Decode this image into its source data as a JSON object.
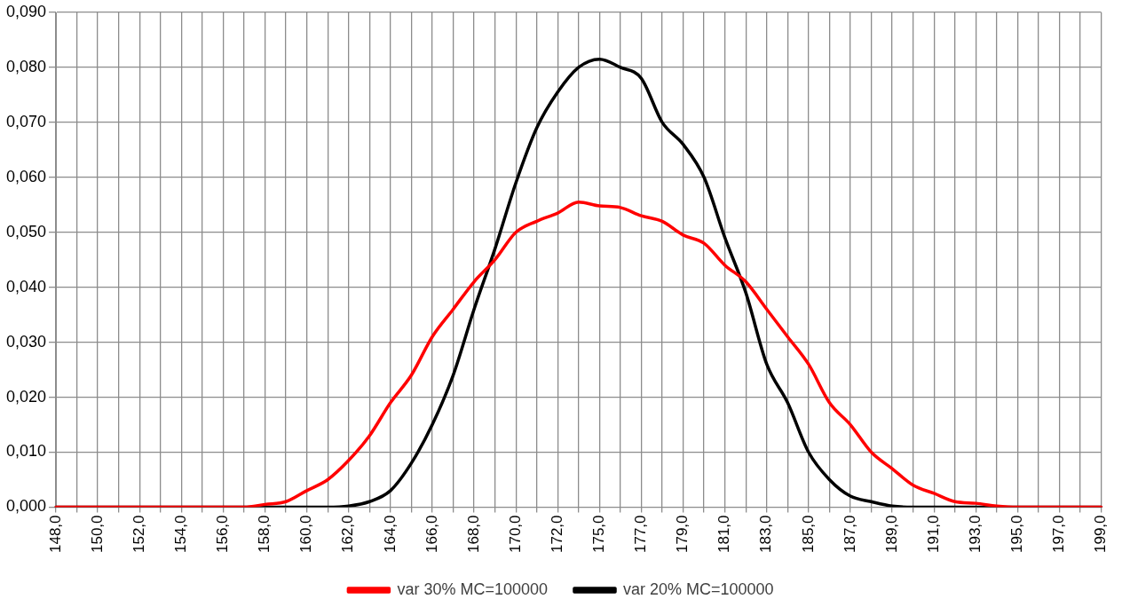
{
  "chart_data": {
    "type": "line",
    "categories": [
      "148,0",
      null,
      "150,0",
      null,
      "152,0",
      null,
      "154,0",
      null,
      "156,0",
      null,
      "158,0",
      null,
      "160,0",
      null,
      "162,0",
      null,
      "164,0",
      null,
      "166,0",
      null,
      "168,0",
      null,
      "170,0",
      null,
      "172,0",
      null,
      "175,0",
      null,
      "177,0",
      null,
      "179,0",
      null,
      "181,0",
      null,
      "183,0",
      null,
      "185,0",
      null,
      "187,0",
      null,
      "189,0",
      null,
      "191,0",
      null,
      "193,0",
      null,
      "195,0",
      null,
      "197,0",
      null,
      "199,0"
    ],
    "series": [
      {
        "name": "var 30% MC=100000",
        "color": "#ff0000",
        "values": [
          0,
          0,
          0,
          0,
          0,
          0,
          0,
          0,
          0,
          0,
          0.0005,
          0.001,
          0.003,
          0.005,
          0.0085,
          0.013,
          0.019,
          0.024,
          0.031,
          0.036,
          0.041,
          0.045,
          0.05,
          0.052,
          0.0535,
          0.0555,
          0.0548,
          0.0545,
          0.053,
          0.052,
          0.0495,
          0.048,
          0.044,
          0.041,
          0.036,
          0.031,
          0.026,
          0.019,
          0.015,
          0.01,
          0.007,
          0.004,
          0.0025,
          0.001,
          0.0007,
          0.0002,
          0,
          0,
          0,
          0,
          0
        ]
      },
      {
        "name": "var 20% MC=100000",
        "color": "#000000",
        "values": [
          0,
          0,
          0,
          0,
          0,
          0,
          0,
          0,
          0,
          0,
          0,
          0,
          0,
          0,
          0.0002,
          0.001,
          0.003,
          0.008,
          0.015,
          0.024,
          0.036,
          0.047,
          0.059,
          0.069,
          0.0755,
          0.08,
          0.0815,
          0.08,
          0.078,
          0.07,
          0.066,
          0.06,
          0.049,
          0.039,
          0.026,
          0.019,
          0.01,
          0.005,
          0.002,
          0.001,
          0.0002,
          0,
          0,
          0,
          0,
          0,
          0,
          0,
          0,
          0,
          0
        ]
      }
    ],
    "ylim": [
      0,
      0.09
    ],
    "yticks": [
      {
        "value": 0,
        "label": "0,000"
      },
      {
        "value": 0.01,
        "label": "0,010"
      },
      {
        "value": 0.02,
        "label": "0,020"
      },
      {
        "value": 0.03,
        "label": "0,030"
      },
      {
        "value": 0.04,
        "label": "0,040"
      },
      {
        "value": 0.05,
        "label": "0,050"
      },
      {
        "value": 0.06,
        "label": "0,060"
      },
      {
        "value": 0.07,
        "label": "0,070"
      },
      {
        "value": 0.08,
        "label": "0,080"
      },
      {
        "value": 0.09,
        "label": "0,090"
      }
    ],
    "grid": true,
    "legend": "bottom",
    "marker": "none",
    "line_style": "solid"
  }
}
